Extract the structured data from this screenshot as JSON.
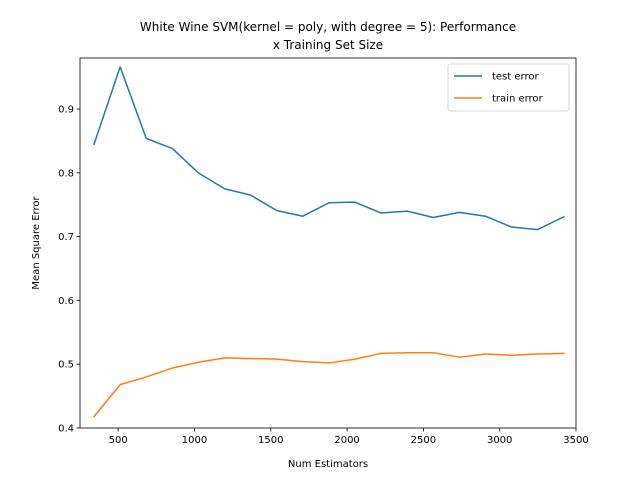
{
  "chart_data": {
    "type": "line",
    "title_line1": "White Wine SVM(kernel = poly, with degree = 5): Performance",
    "title_line2": "x Training Set Size",
    "xlabel": "Num Estimators",
    "ylabel": "Mean Square Error",
    "xlim": [
      250,
      3500
    ],
    "ylim": [
      0.4,
      0.98
    ],
    "xticks": [
      500,
      1000,
      1500,
      2000,
      2500,
      3000,
      3500
    ],
    "xtick_labels": [
      "500",
      "1000",
      "1500",
      "2000",
      "2500",
      "3000",
      "3500"
    ],
    "yticks": [
      0.4,
      0.5,
      0.6,
      0.7,
      0.8,
      0.9
    ],
    "ytick_labels": [
      "0.4",
      "0.5",
      "0.6",
      "0.7",
      "0.8",
      "0.9"
    ],
    "legend_position": "top-right",
    "x": [
      342,
      513,
      684,
      855,
      1026,
      1197,
      1368,
      1539,
      1710,
      1881,
      2052,
      2223,
      2394,
      2565,
      2736,
      2907,
      3078,
      3249,
      3420
    ],
    "series": [
      {
        "name": "test error",
        "color": "#1f77b4",
        "values": [
          0.845,
          0.966,
          0.854,
          0.838,
          0.8,
          0.775,
          0.765,
          0.741,
          0.732,
          0.753,
          0.754,
          0.737,
          0.74,
          0.73,
          0.738,
          0.732,
          0.715,
          0.711,
          0.731
        ]
      },
      {
        "name": "train error",
        "color": "#ff7f0e",
        "values": [
          0.418,
          0.468,
          0.48,
          0.494,
          0.503,
          0.51,
          0.509,
          0.508,
          0.504,
          0.502,
          0.508,
          0.517,
          0.518,
          0.518,
          0.511,
          0.516,
          0.514,
          0.516,
          0.517
        ]
      }
    ]
  }
}
